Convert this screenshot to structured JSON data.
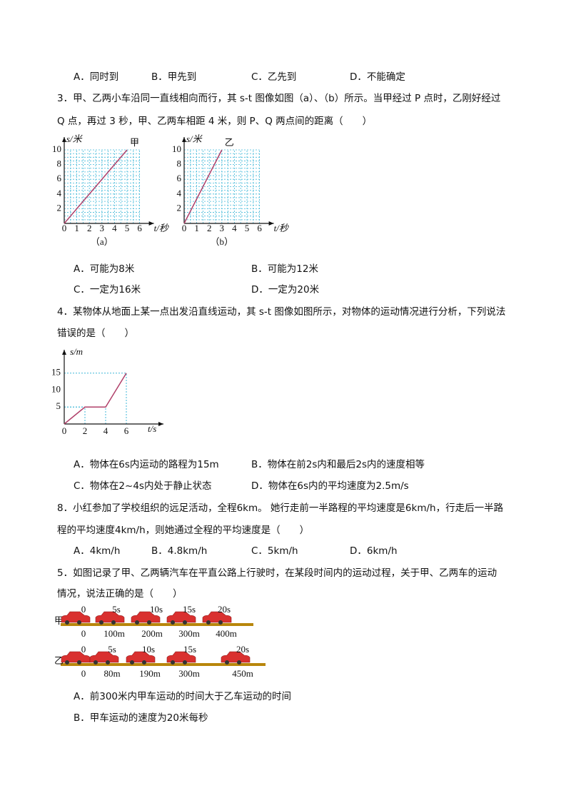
{
  "q2": {
    "options": [
      "A．同时到",
      "B．甲先到",
      "C．乙先到",
      "D．不能确定"
    ]
  },
  "q3": {
    "stem": [
      "3．甲、乙两小车沿同一直线相向而行，其 s-t 图像如图（a）、（b）所示。当甲经过 P 点时，乙刚好经过",
      "Q 点，再过 3 秒，甲、乙两车相距 4 米，则 P、Q 两点间的距离（　　）"
    ],
    "figures": [
      {
        "y_label": "s/米",
        "x_label": "t/秒",
        "line_label": "甲",
        "caption": "（a）",
        "xticks": [
          0,
          1,
          2,
          3,
          4,
          5,
          6
        ],
        "yticks": [
          2,
          4,
          6,
          8,
          10
        ]
      },
      {
        "y_label": "s/米",
        "x_label": "t/秒",
        "line_label": "乙",
        "caption": "（b）",
        "xticks": [
          0,
          1,
          2,
          3,
          4,
          5,
          6
        ],
        "yticks": [
          2,
          4,
          6,
          8,
          10
        ]
      }
    ],
    "options": [
      "A．可能为8米",
      "B．可能为12米",
      "C．一定为16米",
      "D．一定为20米"
    ]
  },
  "q4": {
    "stem": [
      "4．某物体从地面上某一点出发沿直线运动，其 s-t 图像如图所示，对物体的运动情况进行分析，下列说法",
      "错误的是（　　）"
    ],
    "figure": {
      "y_label": "s/m",
      "x_label": "t/s",
      "xticks": [
        0,
        2,
        4,
        6
      ],
      "yticks": [
        5,
        10,
        15
      ]
    },
    "options": [
      "A．物体在6s内运动的路程为15m",
      "B．物体在前2s内和最后2s内的速度相等",
      "C．物体在2~4s内处于静止状态",
      "D．物体在6s内的平均速度为2.5m/s"
    ]
  },
  "q8": {
    "stem": [
      "8．小红参加了学校组织的远足活动，全程6km。 她行走前一半路程的平均速度是6km/h，行走后一半路",
      "程的平均速度4km/h，则她通过全程的平均速度是（　　）"
    ],
    "options": [
      "A．4km/h",
      "B．4.8km/h",
      "C．5km/h",
      "D．6km/h"
    ]
  },
  "q5": {
    "stem": [
      "5．如图记录了甲、乙两辆汽车在平直公路上行驶时，在某段时间内的运动过程，关于甲、乙两车的运动",
      "情况，说法正确的是（　　）"
    ],
    "figure": {
      "rows": [
        {
          "label": "甲",
          "times": [
            "0",
            "5s",
            "10s",
            "15s",
            "20s"
          ],
          "distances": [
            "0",
            "100m",
            "200m",
            "300m",
            "400m"
          ]
        },
        {
          "label": "乙",
          "times": [
            "0",
            "5s",
            "10s",
            "15s",
            "20s"
          ],
          "distances": [
            "0",
            "80m",
            "190m",
            "300m",
            "450m"
          ]
        }
      ]
    },
    "options": [
      "A．前300米内甲车运动的时间大于乙车运动的时间",
      "B．甲车运动的速度为20米每秒"
    ]
  }
}
